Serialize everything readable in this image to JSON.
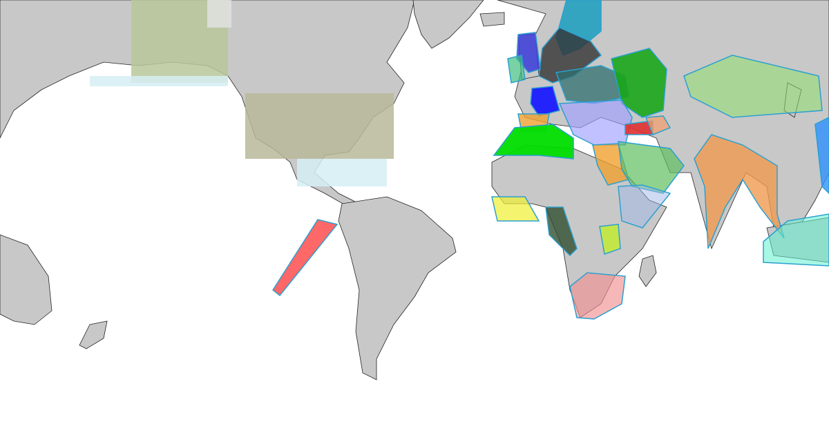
{
  "map": {
    "projection": "web-mercator",
    "land_color": "#c8c8c8",
    "border_color": "#222222",
    "water_color": "#ffffff",
    "raster_tiles_color": "#cdbf95",
    "overlays": [
      {
        "id": "pacific-red",
        "color": "#ff4d4d"
      },
      {
        "id": "scandinavia",
        "color": "#1a9fbf"
      },
      {
        "id": "baltic-dark",
        "color": "#333333"
      },
      {
        "id": "uk",
        "color": "#3b3bd9"
      },
      {
        "id": "ireland",
        "color": "#3fbf7f"
      },
      {
        "id": "france",
        "color": "#1a1aff"
      },
      {
        "id": "central-europe",
        "color": "#2f6f6f"
      },
      {
        "id": "ukraine-belarus",
        "color": "#19a619"
      },
      {
        "id": "balkans-med",
        "color": "#9f9fff"
      },
      {
        "id": "iberia",
        "color": "#f0a030"
      },
      {
        "id": "north-africa",
        "color": "#00dd00"
      },
      {
        "id": "egypt",
        "color": "#f0a030"
      },
      {
        "id": "middle-east",
        "color": "#5fbf5f"
      },
      {
        "id": "turkey-red",
        "color": "#e03030"
      },
      {
        "id": "caucasus",
        "color": "#f0a070"
      },
      {
        "id": "horn-africa",
        "color": "#a0b8e8"
      },
      {
        "id": "central-asia",
        "color": "#90e070"
      },
      {
        "id": "india",
        "color": "#f09a50"
      },
      {
        "id": "se-asia",
        "color": "#60f0d0"
      },
      {
        "id": "east-asia-blue",
        "color": "#3090ff"
      },
      {
        "id": "west-africa",
        "color": "#f0f030"
      },
      {
        "id": "angola",
        "color": "#2f4f2f"
      },
      {
        "id": "zambia",
        "color": "#c0f020"
      },
      {
        "id": "south-africa",
        "color": "#f09090"
      }
    ]
  }
}
